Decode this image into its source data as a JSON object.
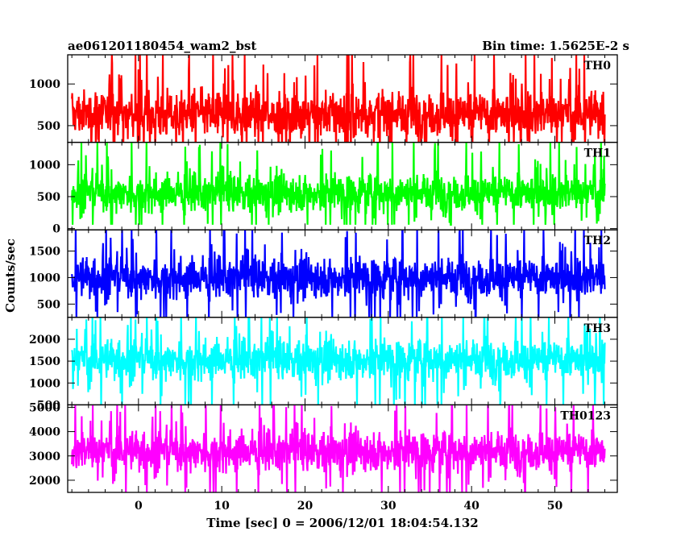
{
  "chart_data": {
    "type": "line",
    "title_left": "ae061201180454_wam2_bst",
    "title_right": "Bin time: 1.5625E-2 s",
    "xlabel": "Time [sec] 0 = 2006/12/01 18:04:54.132",
    "ylabel": "Counts/sec",
    "xlim": [
      -8.5,
      57.5
    ],
    "x_ticks": [
      0,
      10,
      20,
      30,
      40,
      50
    ],
    "data_x_range": [
      -8.0,
      56.0
    ],
    "grid": false,
    "panels": [
      {
        "name": "TH0",
        "color": "#ff0000",
        "ylim": [
          300,
          1350
        ],
        "y_ticks": [
          500,
          1000
        ],
        "mean": 640,
        "low": 140,
        "high": 1350
      },
      {
        "name": "TH1",
        "color": "#00ff00",
        "ylim": [
          -20,
          1350
        ],
        "y_ticks": [
          0,
          500,
          1000
        ],
        "mean": 560,
        "low": 60,
        "high": 1350
      },
      {
        "name": "TH2",
        "color": "#0000ff",
        "ylim": [
          250,
          1900
        ],
        "y_ticks": [
          500,
          1000,
          1500
        ],
        "mean": 1000,
        "low": 250,
        "high": 1900
      },
      {
        "name": "TH3",
        "color": "#00ffff",
        "ylim": [
          500,
          2500
        ],
        "y_ticks": [
          500,
          1000,
          1500,
          2000
        ],
        "mean": 1540,
        "low": 500,
        "high": 2500
      },
      {
        "name": "TH0123",
        "color": "#ff00ff",
        "ylim": [
          1500,
          5100
        ],
        "y_ticks": [
          2000,
          3000,
          4000,
          5000
        ],
        "mean": 3200,
        "low": 1500,
        "high": 5100
      }
    ]
  }
}
